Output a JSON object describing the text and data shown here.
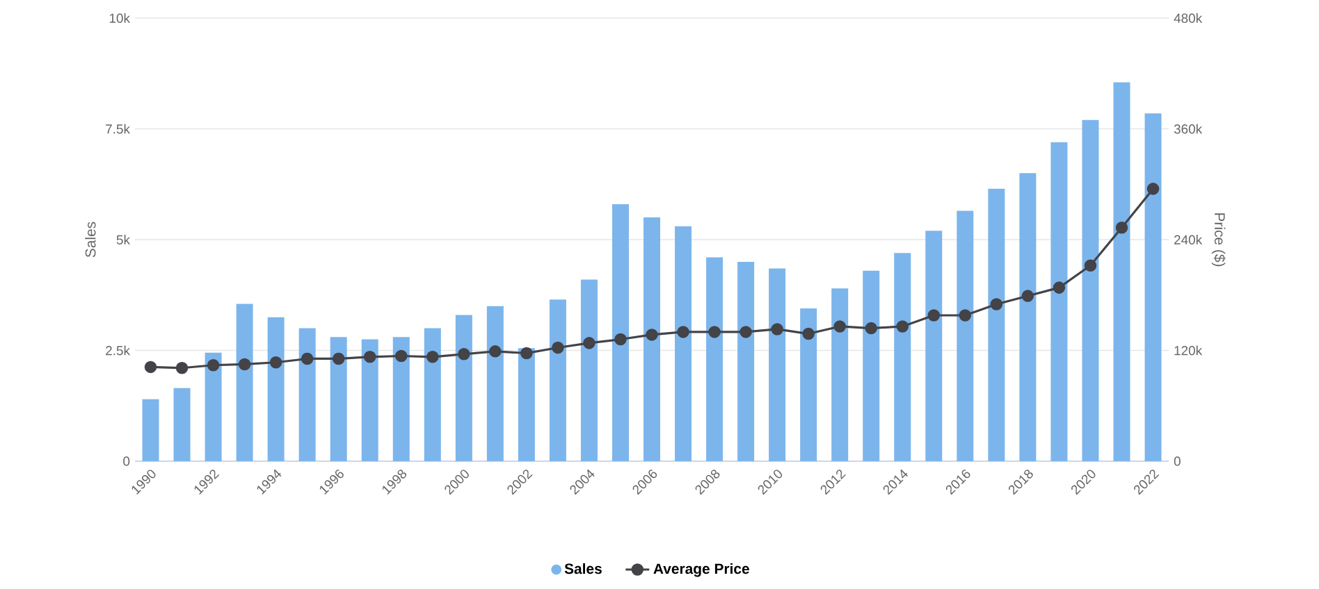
{
  "chart_data": {
    "type": "bar",
    "ylabel": "Sales",
    "y2label": "Price ($)",
    "categories": [
      "1990",
      null,
      "1992",
      null,
      "1994",
      null,
      "1996",
      null,
      "1998",
      null,
      "2000",
      null,
      "2002",
      null,
      "2004",
      null,
      "2006",
      null,
      "2008",
      null,
      "2010",
      null,
      "2012",
      null,
      "2014",
      null,
      "2016",
      null,
      "2018",
      null,
      "2020",
      null,
      "2022"
    ],
    "series": [
      {
        "name": "Sales",
        "color": "#7cb5ec",
        "values": [
          1400,
          1650,
          2450,
          3550,
          3250,
          3000,
          2800,
          2750,
          2800,
          3000,
          3300,
          3500,
          2550,
          3650,
          4100,
          5800,
          5500,
          5300,
          4600,
          4500,
          4350,
          3450,
          3900,
          4300,
          4700,
          5200,
          5650,
          6150,
          6500,
          7200,
          7700,
          8550,
          7850
        ]
      },
      {
        "name": "Average Price",
        "type": "line",
        "axis": "y2",
        "color": "#434348",
        "marker": "circle",
        "values": [
          102000,
          101000,
          104000,
          105000,
          107000,
          111000,
          111000,
          113000,
          114000,
          113000,
          116000,
          119000,
          117000,
          123000,
          128000,
          132000,
          137000,
          140000,
          140000,
          140000,
          143000,
          138000,
          146000,
          144000,
          146000,
          158000,
          158000,
          170000,
          179000,
          188000,
          212000,
          253000,
          295000
        ]
      }
    ],
    "ylim": [
      0,
      10000
    ],
    "yticks": [
      0,
      {
        "value": 2500,
        "label": "2.5k"
      },
      {
        "value": 5000,
        "label": "5k"
      },
      {
        "value": 7500,
        "label": "7.5k"
      },
      {
        "value": 10000,
        "label": "10k"
      }
    ],
    "y2lim": [
      0,
      480000
    ],
    "y2ticks": [
      0,
      {
        "value": 120000,
        "label": "120k"
      },
      {
        "value": 240000,
        "label": "240k"
      },
      {
        "value": 360000,
        "label": "360k"
      },
      {
        "value": 480000,
        "label": "480k"
      }
    ],
    "grid": "y",
    "legend": "bottom"
  }
}
